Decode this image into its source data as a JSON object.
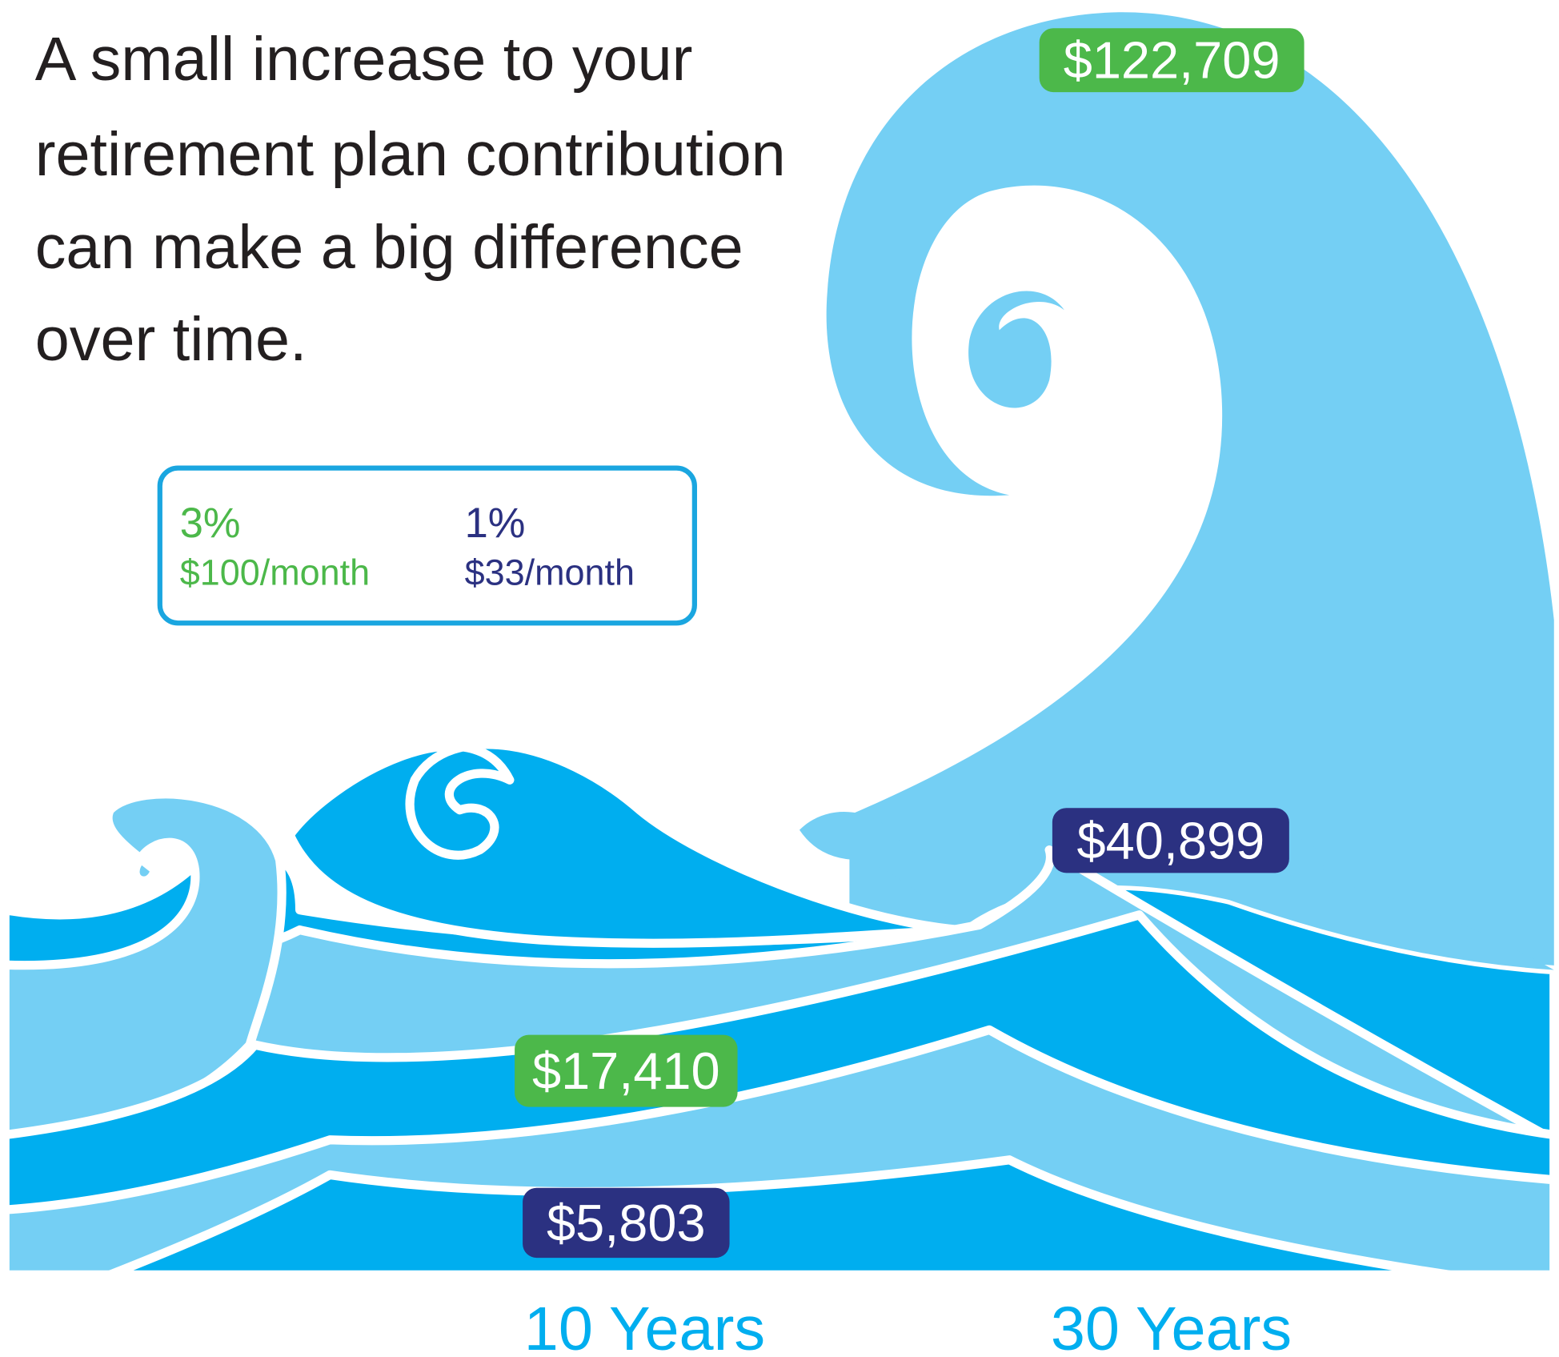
{
  "headline": [
    "A small increase to your",
    "retirement plan contribution",
    "can make a big difference",
    "over time."
  ],
  "legend": [
    {
      "rate": "3%",
      "amount": "$100/month",
      "color": "#4cb84a"
    },
    {
      "rate": "1%",
      "amount": "$33/month",
      "color": "#2b3181"
    }
  ],
  "labels": [
    {
      "text": "$122,709",
      "color": "#4cb84a"
    },
    {
      "text": "$40,899",
      "color": "#2b3181"
    },
    {
      "text": "$17,410",
      "color": "#4cb84a"
    },
    {
      "text": "$5,803",
      "color": "#2b3181"
    }
  ],
  "periods": [
    "10 Years",
    "30 Years"
  ]
}
